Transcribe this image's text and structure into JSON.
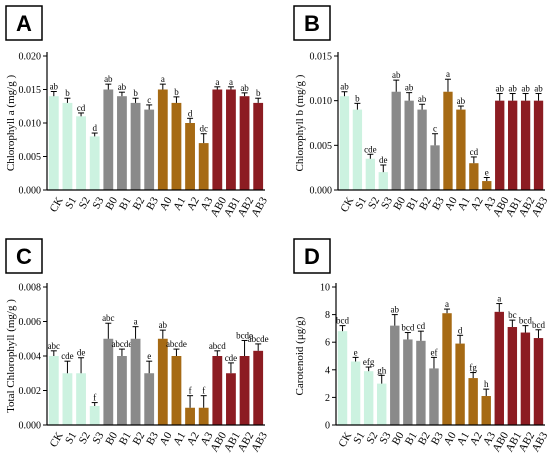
{
  "chart_data": [
    {
      "type": "bar",
      "panel_letter": "A",
      "ylabel": "Chlorophyll a (mg/g )",
      "ylim": [
        0,
        0.02
      ],
      "yticks": [
        0,
        0.005,
        0.01,
        0.015,
        0.02
      ],
      "ytick_labels": [
        "0.000",
        "0.005",
        "0.010",
        "0.015",
        "0.020"
      ],
      "categories": [
        "CK",
        "S1",
        "S2",
        "S3",
        "B0",
        "B1",
        "B2",
        "B3",
        "A0",
        "A1",
        "A2",
        "A3",
        "AB0",
        "AB1",
        "AB2",
        "AB3"
      ],
      "values": [
        0.014,
        0.013,
        0.011,
        0.008,
        0.015,
        0.014,
        0.013,
        0.012,
        0.015,
        0.013,
        0.01,
        0.007,
        0.015,
        0.015,
        0.014,
        0.013
      ],
      "errors": [
        0.0007,
        0.0007,
        0.0005,
        0.0005,
        0.0008,
        0.0006,
        0.0007,
        0.0007,
        0.0008,
        0.0009,
        0.0007,
        0.0014,
        0.0004,
        0.0004,
        0.0005,
        0.0007
      ],
      "letters": [
        "ab",
        "b",
        "cd",
        "d",
        "ab",
        "ab",
        "b",
        "c",
        "a",
        "b",
        "d",
        "dc",
        "a",
        "a",
        "ab",
        "b"
      ]
    },
    {
      "type": "bar",
      "panel_letter": "B",
      "ylabel": "Chlorophyll b (mg/g )",
      "ylim": [
        0,
        0.015
      ],
      "yticks": [
        0,
        0.005,
        0.01,
        0.015
      ],
      "ytick_labels": [
        "0.000",
        "0.005",
        "0.010",
        "0.015"
      ],
      "categories": [
        "CK",
        "S1",
        "S2",
        "S3",
        "B0",
        "B1",
        "B2",
        "B3",
        "A0",
        "A1",
        "A2",
        "A3",
        "AB0",
        "AB1",
        "AB2",
        "AB3"
      ],
      "values": [
        0.0105,
        0.009,
        0.0035,
        0.002,
        0.011,
        0.01,
        0.009,
        0.005,
        0.011,
        0.009,
        0.003,
        0.001,
        0.01,
        0.01,
        0.01,
        0.01
      ],
      "errors": [
        0.0005,
        0.0007,
        0.0005,
        0.0008,
        0.0013,
        0.0009,
        0.0006,
        0.0013,
        0.0014,
        0.0004,
        0.0007,
        0.0004,
        0.0008,
        0.0008,
        0.0008,
        0.0008
      ],
      "letters": [
        "ab",
        "b",
        "cde",
        "de",
        "ab",
        "ab",
        "ab",
        "c",
        "a",
        "ab",
        "cd",
        "e",
        "ab",
        "ab",
        "ab",
        "ab"
      ]
    },
    {
      "type": "bar",
      "panel_letter": "C",
      "ylabel": "Total Chlorophyll (mg/g )",
      "ylim": [
        0,
        0.008
      ],
      "yticks": [
        0,
        0.002,
        0.004,
        0.006,
        0.008
      ],
      "ytick_labels": [
        "0.000",
        "0.002",
        "0.004",
        "0.006",
        "0.008"
      ],
      "categories": [
        "CK",
        "S1",
        "S2",
        "S3",
        "B0",
        "B1",
        "B2",
        "B3",
        "A0",
        "A1",
        "A2",
        "A3",
        "AB0",
        "AB1",
        "AB2",
        "AB3"
      ],
      "values": [
        0.004,
        0.003,
        0.003,
        0.0011,
        0.005,
        0.004,
        0.005,
        0.003,
        0.005,
        0.004,
        0.001,
        0.001,
        0.004,
        0.003,
        0.004,
        0.0043
      ],
      "errors": [
        0.0003,
        0.0007,
        0.0009,
        0.0002,
        0.0009,
        0.0004,
        0.0007,
        0.0007,
        0.0005,
        0.0004,
        0.0007,
        0.0007,
        0.0003,
        0.0006,
        0.0009,
        0.0004
      ],
      "letters": [
        "abc",
        "cde",
        "de",
        "f",
        "abc",
        "abcde",
        "a",
        "e",
        "ab",
        "abcde",
        "f",
        "f",
        "abcd",
        "cde",
        "bcde",
        "abcde"
      ]
    },
    {
      "type": "bar",
      "panel_letter": "D",
      "ylabel": "Carotenoid  (μg/g)",
      "ylim": [
        0,
        10
      ],
      "yticks": [
        0,
        2,
        4,
        6,
        8,
        10
      ],
      "ytick_labels": [
        "0",
        "2",
        "4",
        "6",
        "8",
        "10"
      ],
      "categories": [
        "CK",
        "S1",
        "S2",
        "S3",
        "B0",
        "B1",
        "B2",
        "B3",
        "A0",
        "A1",
        "A2",
        "A3",
        "AB0",
        "AB1",
        "AB2",
        "AB3"
      ],
      "values": [
        6.8,
        4.6,
        3.9,
        3.0,
        7.2,
        6.2,
        6.1,
        4.1,
        8.1,
        5.9,
        3.4,
        2.1,
        8.2,
        7.1,
        6.7,
        6.3
      ],
      "errors": [
        0.4,
        0.3,
        0.3,
        0.6,
        0.8,
        0.5,
        0.7,
        0.8,
        0.3,
        0.6,
        0.4,
        0.5,
        0.6,
        0.5,
        0.5,
        0.6
      ],
      "letters": [
        "bcd",
        "e",
        "efg",
        "gh",
        "ab",
        "bcd",
        "cd",
        "ef",
        "a",
        "d",
        "fg",
        "h",
        "a",
        "bc",
        "bcd",
        "bcd"
      ]
    }
  ],
  "colors": {
    "S": "#ccf2e0",
    "B": "#8a8a8a",
    "A": "#a66a14",
    "AB": "#8c1c22",
    "axis": "#000000"
  }
}
